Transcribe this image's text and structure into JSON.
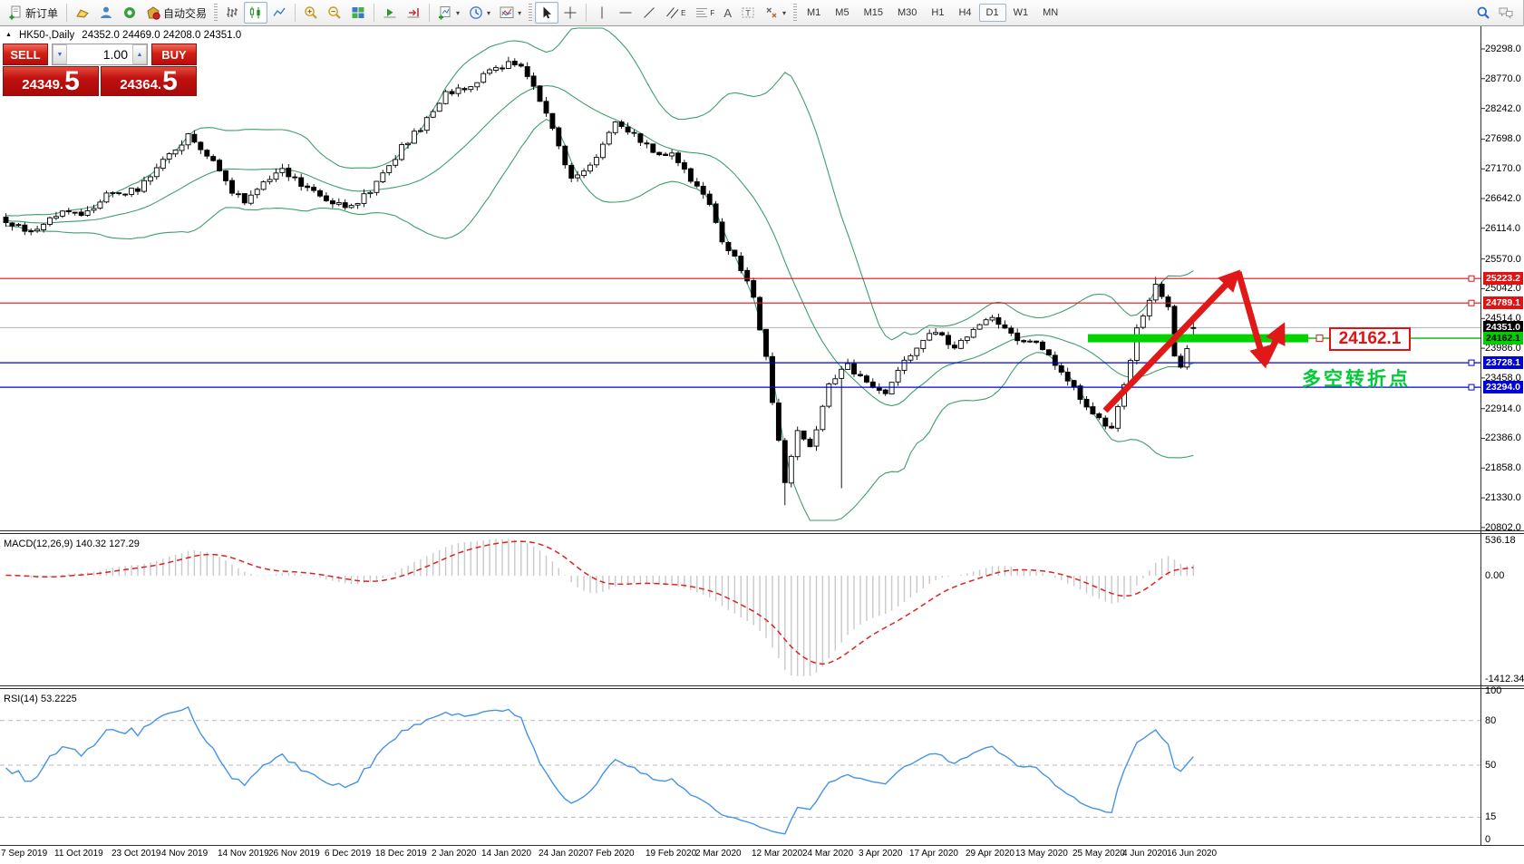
{
  "toolbar": {
    "new_order_label": "新订单",
    "auto_trading_label": "自动交易",
    "timeframes": [
      "M1",
      "M5",
      "M15",
      "M30",
      "H1",
      "H4",
      "D1",
      "W1",
      "MN"
    ],
    "selected_timeframe": "D1",
    "channel_letter": "E",
    "fibo_letter": "F",
    "text_letter": "A",
    "label_letter": "T"
  },
  "icons": {
    "dropdown": "▾",
    "volume_down": "▼",
    "volume_up": "▲",
    "collapse_marker": "▲"
  },
  "chart": {
    "title_symbol": "HK50-,Daily",
    "title_values": "24352.0 24469.0 24208.0 24351.0"
  },
  "trade_panel": {
    "sell_label": "SELL",
    "buy_label": "BUY",
    "volume": "1.00",
    "decimal_sep": ".",
    "sell_int": "24349",
    "sell_frac": "5",
    "buy_int": "24364",
    "buy_frac": "5"
  },
  "annotations": {
    "turning_point_text": "多空转折点",
    "level_label": "24162.1"
  },
  "price_axis_ticks": [
    29298.0,
    28770.0,
    28242.0,
    27698.0,
    27170.0,
    26642.0,
    26114.0,
    25570.0,
    25042.0,
    24514.0,
    23986.0,
    23458.0,
    22914.0,
    22386.0,
    21858.0,
    21330.0,
    20802.0
  ],
  "axis_chips": [
    {
      "text": "25223.2",
      "price": 25223.2,
      "type": "red"
    },
    {
      "text": "24789.1",
      "price": 24789.1,
      "type": "red"
    },
    {
      "text": "24351.0",
      "price": 24351.0,
      "type": "current"
    },
    {
      "text": "24162.1",
      "price": 24162.1,
      "type": "green"
    },
    {
      "text": "23728.1",
      "price": 23728.1,
      "type": "blue"
    },
    {
      "text": "23294.0",
      "price": 23294.0,
      "type": "blue"
    }
  ],
  "macd": {
    "label": "MACD(12,26,9) 140.32 127.29",
    "axis_max": "536.18",
    "axis_zero": "0.00",
    "axis_min": "-1412.34"
  },
  "rsi": {
    "label": "RSI(14) 53.2225",
    "ticks": [
      "100",
      "80",
      "50",
      "15",
      "0"
    ],
    "tick_values": [
      100,
      80,
      50,
      15,
      0
    ],
    "dashed_levels": [
      80,
      50,
      15
    ]
  },
  "dates": [
    "7 Sep 2019",
    "11 Oct 2019",
    "23 Oct 2019",
    "4 Nov 2019",
    "14 Nov 2019",
    "26 Nov 2019",
    "6 Dec 2019",
    "18 Dec 2019",
    "2 Jan 2020",
    "14 Jan 2020",
    "24 Jan 2020",
    "7 Feb 2020",
    "19 Feb 2020",
    "2 Mar 2020",
    "12 Mar 2020",
    "24 Mar 2020",
    "3 Apr 2020",
    "17 Apr 2020",
    "29 Apr 2020",
    "13 May 2020",
    "25 May 2020",
    "4 Jun 2020",
    "16 Jun 2020"
  ],
  "date_indices": [
    1,
    12,
    21,
    29,
    38,
    46,
    55,
    63,
    72,
    80,
    89,
    97,
    106,
    114,
    123,
    131,
    140,
    148,
    157,
    165,
    174,
    182,
    189
  ],
  "colors": {
    "band_green": "#3f9e6e",
    "bull": "#ffffff",
    "bear": "#000000",
    "wick": "#000000",
    "red_line": "#e31212",
    "blue_line": "#0000dd",
    "green_zone": "#00d400",
    "green_thin": "#00b400",
    "current_line": "#b0b0b0",
    "zigzag": "#e01818",
    "macd_hist": "#c9c9c9",
    "macd_signal": "#dd2222",
    "rsi_line": "#4593e6",
    "level_dash": "#bbbbbb",
    "chip_red_bg": "#e31212",
    "chip_blue_bg": "#0000dd",
    "chip_green_bg": "#00ce00",
    "chip_black_bg": "#000000"
  },
  "chart_data": {
    "type": "candlestick",
    "symbol": "HK50",
    "period": "Daily",
    "visible_price_range": [
      20802.0,
      29298.0
    ],
    "candle_count": 190,
    "last_ohlc": {
      "open": 24352.0,
      "high": 24469.0,
      "low": 24208.0,
      "close": 24351.0
    },
    "close_anchors": [
      [
        0,
        26250
      ],
      [
        4,
        26050
      ],
      [
        9,
        26450
      ],
      [
        12,
        26300
      ],
      [
        16,
        26700
      ],
      [
        21,
        26800
      ],
      [
        25,
        27300
      ],
      [
        29,
        27750
      ],
      [
        32,
        27450
      ],
      [
        36,
        26750
      ],
      [
        38,
        26600
      ],
      [
        41,
        26900
      ],
      [
        44,
        27150
      ],
      [
        48,
        26800
      ],
      [
        52,
        26550
      ],
      [
        55,
        26500
      ],
      [
        58,
        26800
      ],
      [
        61,
        27200
      ],
      [
        63,
        27550
      ],
      [
        66,
        27900
      ],
      [
        70,
        28500
      ],
      [
        74,
        28650
      ],
      [
        77,
        28900
      ],
      [
        80,
        29050
      ],
      [
        82,
        28950
      ],
      [
        85,
        28400
      ],
      [
        88,
        27600
      ],
      [
        90,
        26950
      ],
      [
        93,
        27200
      ],
      [
        97,
        27950
      ],
      [
        100,
        27800
      ],
      [
        103,
        27450
      ],
      [
        106,
        27400
      ],
      [
        109,
        27000
      ],
      [
        112,
        26500
      ],
      [
        114,
        25900
      ],
      [
        117,
        25400
      ],
      [
        119,
        24900
      ],
      [
        121,
        23800
      ],
      [
        124,
        21600
      ],
      [
        126,
        22500
      ],
      [
        128,
        22200
      ],
      [
        131,
        23300
      ],
      [
        134,
        23700
      ],
      [
        137,
        23350
      ],
      [
        140,
        23200
      ],
      [
        143,
        23800
      ],
      [
        146,
        24100
      ],
      [
        148,
        24300
      ],
      [
        151,
        24000
      ],
      [
        154,
        24350
      ],
      [
        157,
        24500
      ],
      [
        160,
        24200
      ],
      [
        163,
        24100
      ],
      [
        165,
        24000
      ],
      [
        168,
        23600
      ],
      [
        171,
        23100
      ],
      [
        174,
        22750
      ],
      [
        176,
        22550
      ],
      [
        178,
        23300
      ],
      [
        180,
        24300
      ],
      [
        183,
        25100
      ],
      [
        185,
        24750
      ],
      [
        186,
        23900
      ],
      [
        187,
        23650
      ],
      [
        188,
        24000
      ],
      [
        189,
        24351
      ]
    ],
    "studies": [
      {
        "name": "Bollinger Bands",
        "period": 20,
        "deviation": 2,
        "color": "#3f9e6e"
      },
      {
        "name": "MACD",
        "fast": 12,
        "slow": 26,
        "signal": 9,
        "current_main": 140.32,
        "current_signal": 127.29,
        "pane_max": 536.18,
        "pane_min": -1412.34
      },
      {
        "name": "RSI",
        "period": 14,
        "current": 53.2225,
        "levels": [
          80,
          50,
          15
        ]
      }
    ],
    "horizontal_lines": [
      {
        "price": 25223.2,
        "color": "red"
      },
      {
        "price": 24789.1,
        "color": "red"
      },
      {
        "price": 23728.1,
        "color": "blue"
      },
      {
        "price": 23294.0,
        "color": "blue"
      }
    ],
    "green_zone": {
      "price": 24162.1
    },
    "current_price": 24351.0
  }
}
